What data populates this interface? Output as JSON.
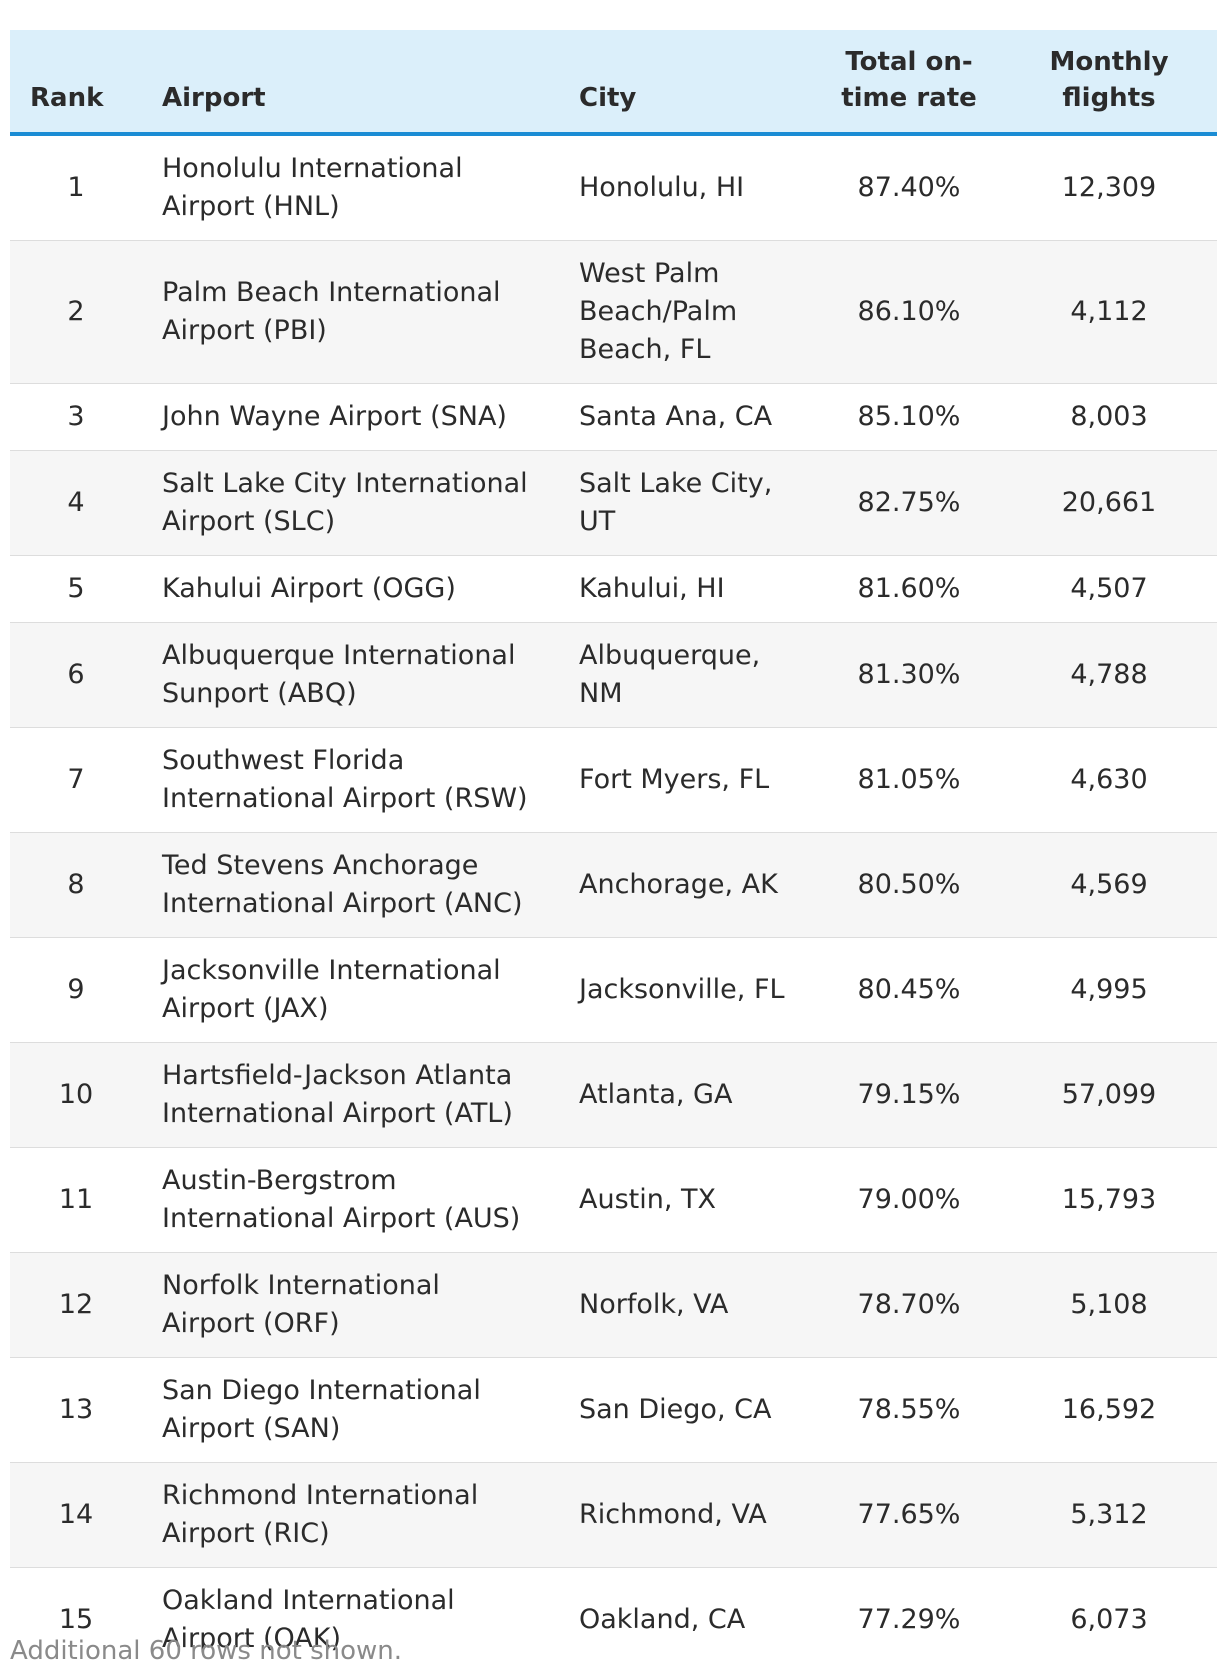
{
  "table": {
    "headers": {
      "rank": "Rank",
      "airport": "Airport",
      "city": "City",
      "rate": "Total on-time rate",
      "flights": "Monthly flights"
    },
    "rows": [
      {
        "rank": "1",
        "airport": "Honolulu International Airport (HNL)",
        "city": "Honolulu, HI",
        "rate": "87.40%",
        "flights": "12,309"
      },
      {
        "rank": "2",
        "airport": "Palm Beach International Airport (PBI)",
        "city": "West Palm Beach/Palm Beach, FL",
        "rate": "86.10%",
        "flights": "4,112"
      },
      {
        "rank": "3",
        "airport": "John Wayne Airport (SNA)",
        "city": "Santa Ana, CA",
        "rate": "85.10%",
        "flights": "8,003"
      },
      {
        "rank": "4",
        "airport": "Salt Lake City International Airport (SLC)",
        "city": "Salt Lake City, UT",
        "rate": "82.75%",
        "flights": "20,661"
      },
      {
        "rank": "5",
        "airport": "Kahului Airport (OGG)",
        "city": "Kahului, HI",
        "rate": "81.60%",
        "flights": "4,507"
      },
      {
        "rank": "6",
        "airport": "Albuquerque International Sunport (ABQ)",
        "city": "Albuquerque, NM",
        "rate": "81.30%",
        "flights": "4,788"
      },
      {
        "rank": "7",
        "airport": "Southwest Florida International Airport (RSW)",
        "city": "Fort Myers, FL",
        "rate": "81.05%",
        "flights": "4,630"
      },
      {
        "rank": "8",
        "airport": "Ted Stevens Anchorage International Airport (ANC)",
        "city": "Anchorage, AK",
        "rate": "80.50%",
        "flights": "4,569"
      },
      {
        "rank": "9",
        "airport": "Jacksonville International Airport (JAX)",
        "city": "Jacksonville, FL",
        "rate": "80.45%",
        "flights": "4,995"
      },
      {
        "rank": "10",
        "airport": "Hartsfield-Jackson Atlanta International Airport (ATL)",
        "city": "Atlanta, GA",
        "rate": "79.15%",
        "flights": "57,099"
      },
      {
        "rank": "11",
        "airport": "Austin-Bergstrom International Airport (AUS)",
        "city": "Austin, TX",
        "rate": "79.00%",
        "flights": "15,793"
      },
      {
        "rank": "12",
        "airport": "Norfolk International Airport (ORF)",
        "city": "Norfolk, VA",
        "rate": "78.70%",
        "flights": "5,108"
      },
      {
        "rank": "13",
        "airport": "San Diego International Airport (SAN)",
        "city": "San Diego, CA",
        "rate": "78.55%",
        "flights": "16,592"
      },
      {
        "rank": "14",
        "airport": "Richmond International Airport (RIC)",
        "city": "Richmond, VA",
        "rate": "77.65%",
        "flights": "5,312"
      },
      {
        "rank": "15",
        "airport": "Oakland International Airport (OAK)",
        "city": "Oakland, CA",
        "rate": "77.29%",
        "flights": "6,073"
      }
    ]
  },
  "footer": {
    "note": "Additional 60 rows not shown."
  }
}
